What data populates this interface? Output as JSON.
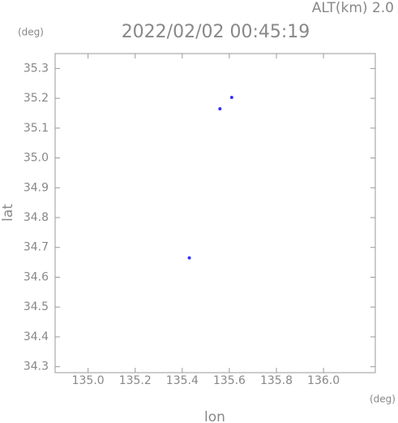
{
  "chart_data": {
    "type": "scatter",
    "title": "2022/02/02 00:45:19",
    "annotation": "ALT(km) 2.0",
    "y_unit": "(deg)",
    "x_unit": "(deg)",
    "xlabel": "lon",
    "ylabel": "lat",
    "color": "#3333ff",
    "x": [
      135.61,
      135.56,
      135.43
    ],
    "values": [
      35.203,
      35.165,
      34.665
    ],
    "xlim": [
      134.86,
      136.22
    ],
    "ylim": [
      34.28,
      35.35
    ],
    "xticks": [
      {
        "value": 135,
        "label": "135.0"
      },
      135.2,
      135.4,
      135.6,
      135.8,
      {
        "value": 136,
        "label": "136.0"
      }
    ],
    "yticks": [
      35.3,
      35.2,
      35.1,
      {
        "value": 35,
        "label": "35.0"
      },
      34.9,
      34.8,
      34.7,
      34.6,
      34.5,
      34.4,
      34.3
    ]
  }
}
